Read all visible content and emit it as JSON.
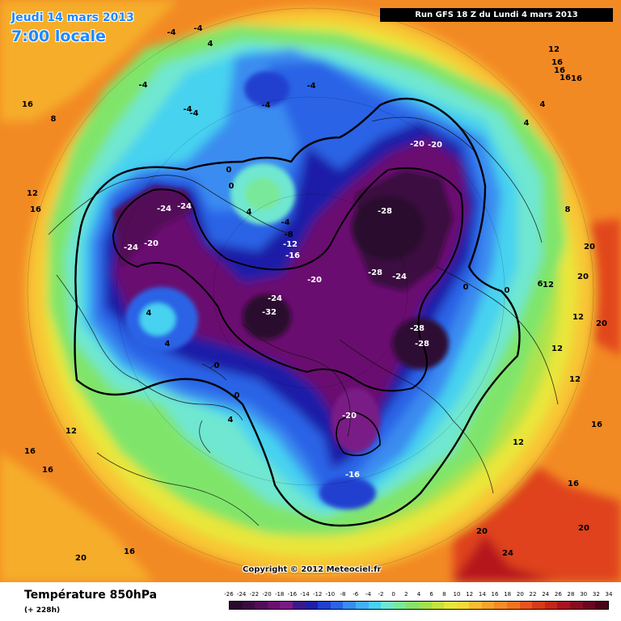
{
  "header": {
    "date": "Jeudi 14 mars 2013",
    "local_time": "7:00 locale",
    "run_info": "Run GFS 18 Z du Lundi 4 mars 2013"
  },
  "footer": {
    "product": "Température 850hPa",
    "lead_time": "(+ 228h)",
    "copyright": "Copyright © 2012 Meteociel.fr"
  },
  "legend": {
    "ticks": [
      "-26",
      "-24",
      "-22",
      "-20",
      "-18",
      "-16",
      "-14",
      "-12",
      "-10",
      "-8",
      "-6",
      "-4",
      "-2",
      "0",
      "2",
      "4",
      "6",
      "8",
      "10",
      "12",
      "14",
      "16",
      "18",
      "20",
      "22",
      "24",
      "26",
      "28",
      "30",
      "32",
      "34"
    ],
    "colors": [
      "#2a0a2e",
      "#3c0a42",
      "#520c58",
      "#6a1070",
      "#7a1a86",
      "#3a1a8a",
      "#1f1fa8",
      "#2040d0",
      "#2a64e6",
      "#3a8cf0",
      "#42b0f5",
      "#46d2f0",
      "#6fe7d0",
      "#7ae89a",
      "#86e26a",
      "#a4e04e",
      "#c6e240",
      "#e6e63a",
      "#f7d83a",
      "#f8bd30",
      "#f6a42a",
      "#f48c26",
      "#f07322",
      "#e8541e",
      "#d63a1a",
      "#c2261a",
      "#a81420",
      "#8a0c22",
      "#6a0620",
      "#4a041a"
    ]
  },
  "contour_labels": [
    "-28",
    "-28",
    "-28",
    "-28",
    "-32",
    "-24",
    "-24",
    "-24",
    "-24",
    "-24",
    "-20",
    "-20",
    "-20",
    "-20",
    "-20",
    "-16",
    "-16",
    "-12",
    "-8",
    "-4",
    "-4",
    "-4",
    "-4",
    "-4",
    "-4",
    "-4",
    "-4",
    "0",
    "0",
    "0",
    "0",
    "0",
    "0",
    "4",
    "4",
    "4",
    "4",
    "4",
    "4",
    "4",
    "8",
    "8",
    "12",
    "12",
    "12",
    "12",
    "12",
    "12",
    "12",
    "12",
    "16",
    "16",
    "16",
    "16",
    "16",
    "16",
    "16",
    "16",
    "16",
    "16",
    "16",
    "20",
    "20",
    "20",
    "20",
    "20",
    "20",
    "24",
    "6"
  ]
}
